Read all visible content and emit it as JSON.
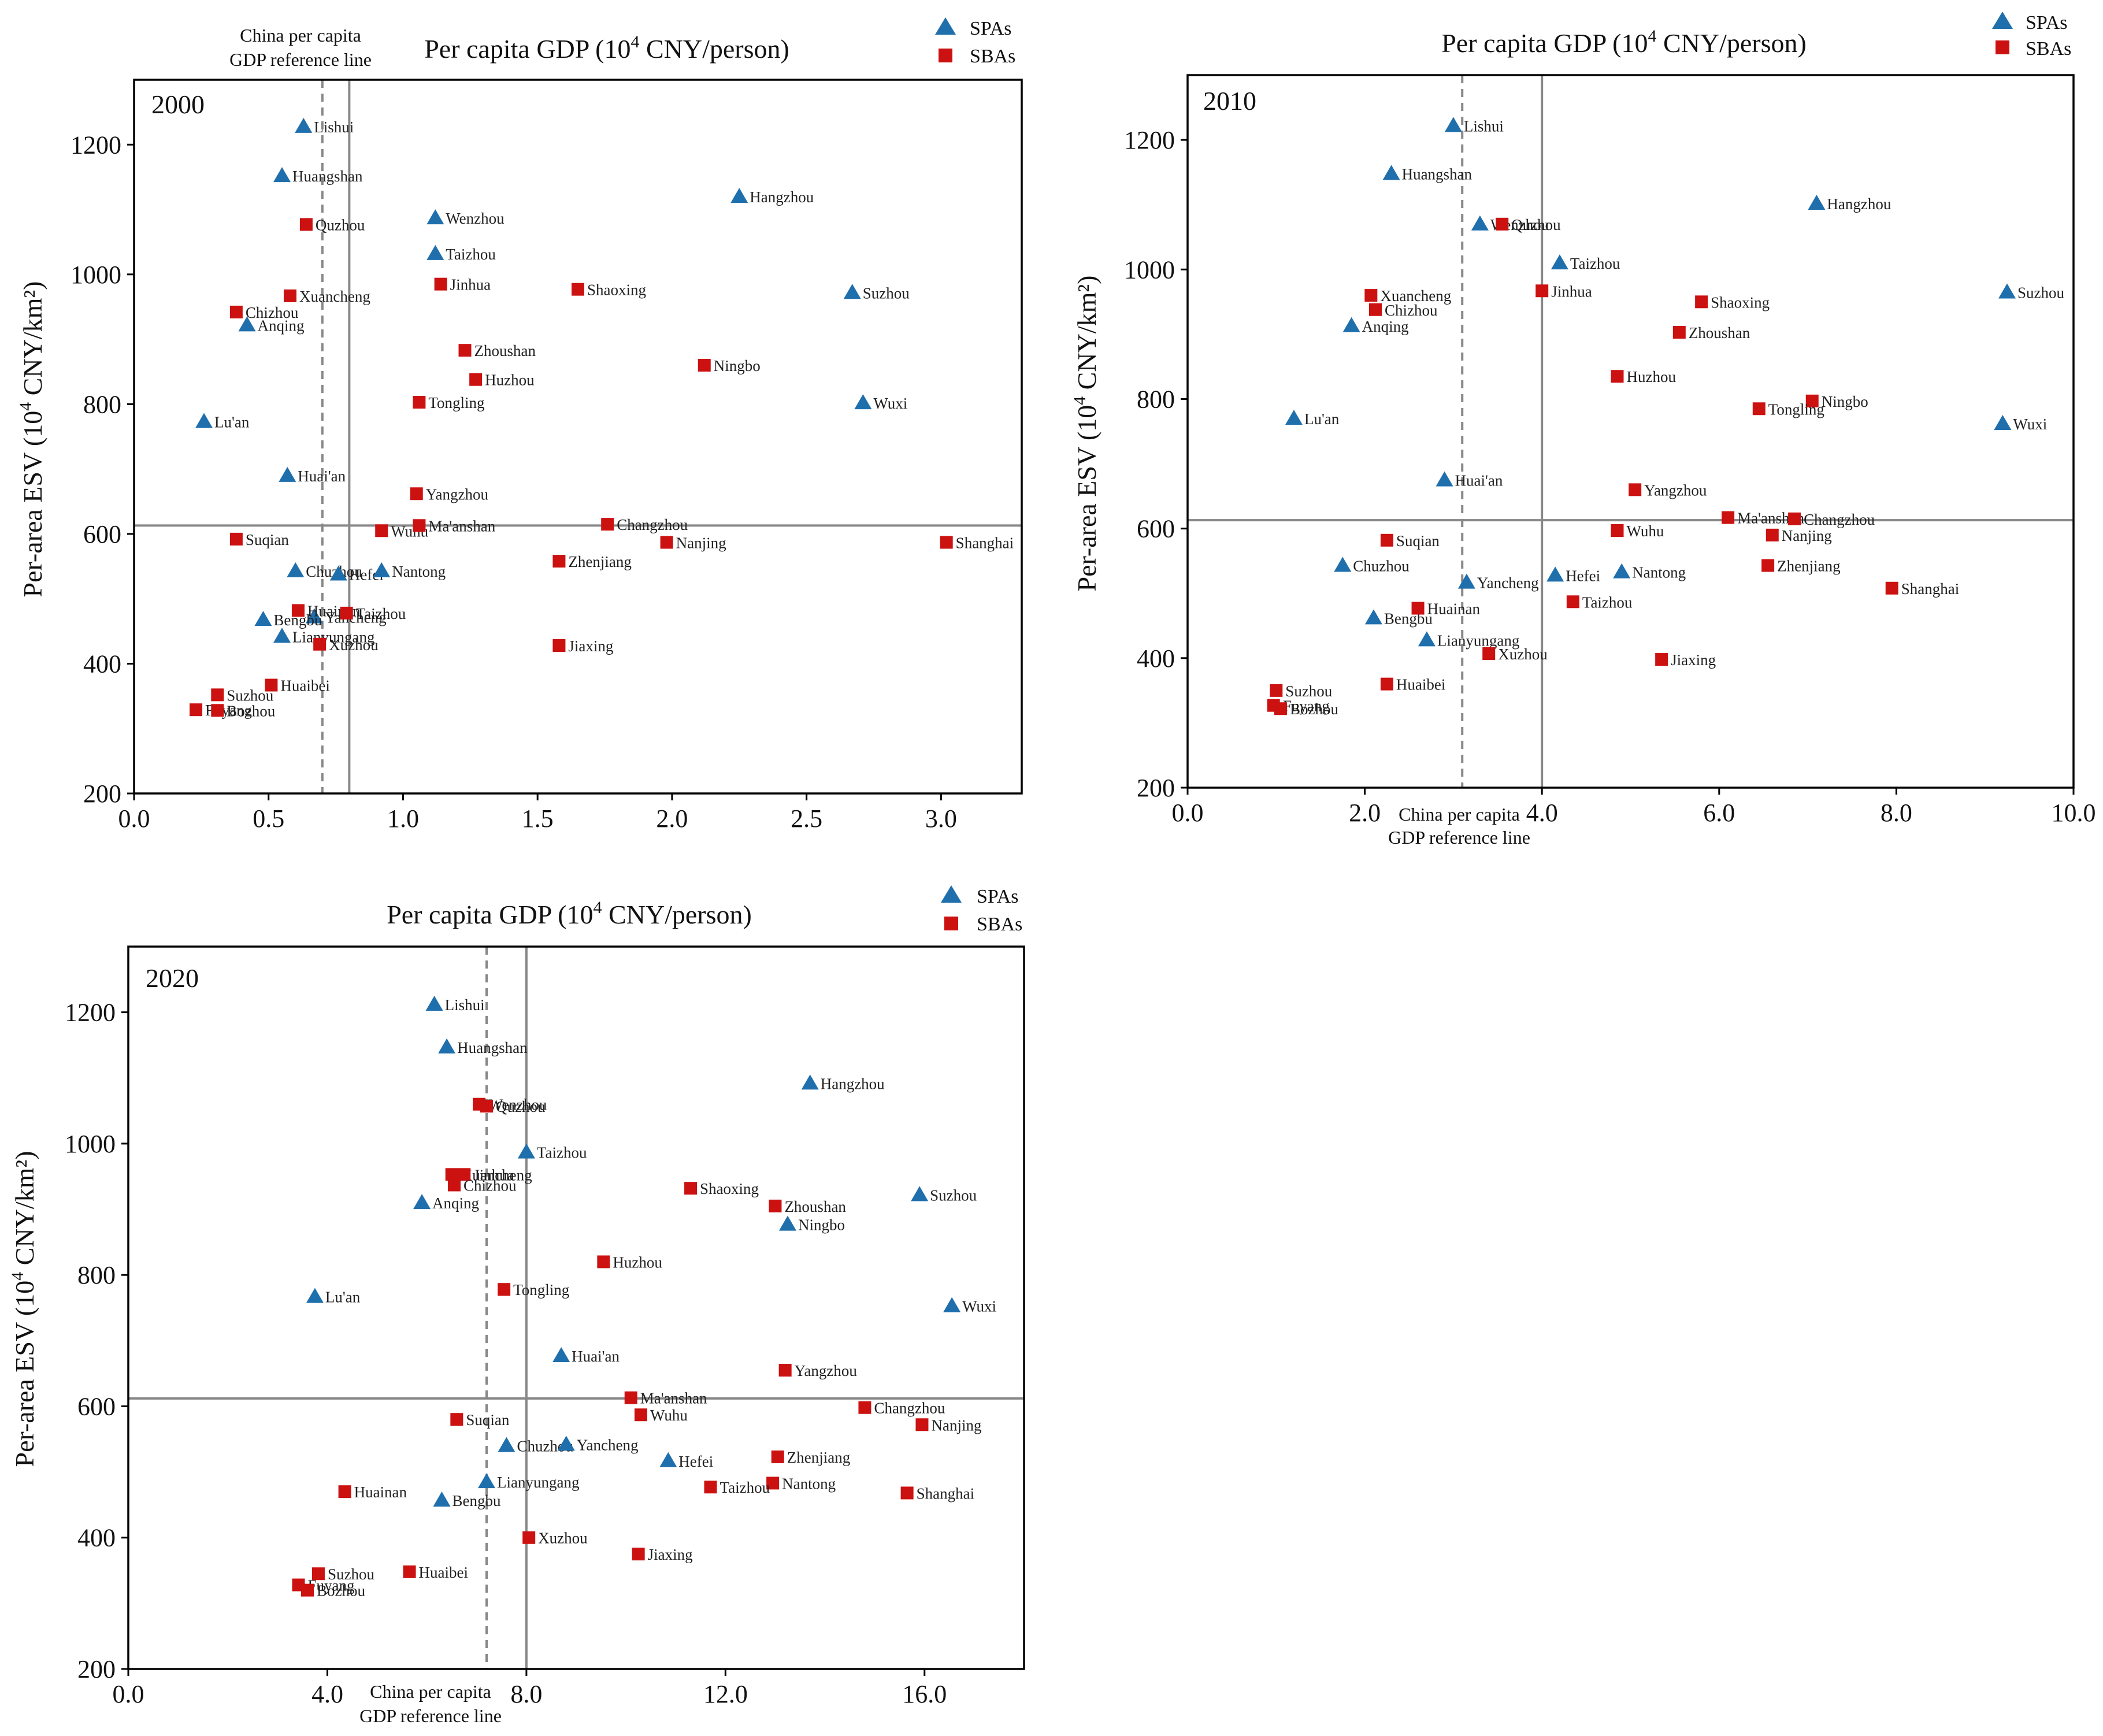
{
  "chart_data": [
    {
      "type": "scatter",
      "panel_label": "2000",
      "title": "Per capita GDP (10",
      "title_sup": "4",
      "title_tail": " CNY/person)",
      "ylabel": "Per-area ESV (10",
      "ylabel_sup": "4",
      "ylabel_tail": " CNY/km²)",
      "xlim": [
        0,
        3.3
      ],
      "ylim": [
        200,
        1300
      ],
      "xticks": [
        0.0,
        0.5,
        1.0,
        1.5,
        2.0,
        2.5,
        3.0
      ],
      "xtick_labels": [
        "0.0",
        "0.5",
        "1.0",
        "1.5",
        "2.0",
        "2.5",
        "3.0"
      ],
      "yticks": [
        200,
        400,
        600,
        800,
        1000,
        1200
      ],
      "ytick_labels": [
        "200",
        "400",
        "600",
        "800",
        "1000",
        "1200"
      ],
      "ref_lines": {
        "china_gdp_x": 0.7,
        "mean_gdp_x": 0.8,
        "mean_esv_y": 613
      },
      "ref_label": [
        "China  per capita",
        "GDP reference line"
      ],
      "legend": [
        "SPAs",
        "SBAs"
      ],
      "spas": [
        {
          "name": "Lishui",
          "x": 0.63,
          "y": 1228
        },
        {
          "name": "Huangshan",
          "x": 0.55,
          "y": 1152
        },
        {
          "name": "Hangzhou",
          "x": 2.25,
          "y": 1120
        },
        {
          "name": "Wenzhou",
          "x": 1.12,
          "y": 1087
        },
        {
          "name": "Taizhou",
          "x": 1.12,
          "y": 1032
        },
        {
          "name": "Suzhou",
          "x": 2.67,
          "y": 972
        },
        {
          "name": "Anqing",
          "x": 0.42,
          "y": 922
        },
        {
          "name": "Wuxi",
          "x": 2.71,
          "y": 802
        },
        {
          "name": "Lu'an",
          "x": 0.26,
          "y": 773
        },
        {
          "name": "Huai'an",
          "x": 0.57,
          "y": 690
        },
        {
          "name": "Chuzhou",
          "x": 0.6,
          "y": 543
        },
        {
          "name": "Hefei",
          "x": 0.76,
          "y": 538
        },
        {
          "name": "Nantong",
          "x": 0.92,
          "y": 543
        },
        {
          "name": "Yancheng",
          "x": 0.67,
          "y": 472
        },
        {
          "name": "Bengbu",
          "x": 0.48,
          "y": 468
        },
        {
          "name": "Lianyungang",
          "x": 0.55,
          "y": 442
        }
      ],
      "sbas": [
        {
          "name": "Quzhou",
          "x": 0.64,
          "y": 1077
        },
        {
          "name": "Jinhua",
          "x": 1.14,
          "y": 985
        },
        {
          "name": "Xuancheng",
          "x": 0.58,
          "y": 967
        },
        {
          "name": "Shaoxing",
          "x": 1.65,
          "y": 977
        },
        {
          "name": "Chizhou",
          "x": 0.38,
          "y": 942
        },
        {
          "name": "Zhoushan",
          "x": 1.23,
          "y": 883
        },
        {
          "name": "Ningbo",
          "x": 2.12,
          "y": 860
        },
        {
          "name": "Huzhou",
          "x": 1.27,
          "y": 838
        },
        {
          "name": "Tongling",
          "x": 1.06,
          "y": 803
        },
        {
          "name": "Yangzhou",
          "x": 1.05,
          "y": 662
        },
        {
          "name": "Wuhu",
          "x": 0.92,
          "y": 605
        },
        {
          "name": "Ma'anshan",
          "x": 1.06,
          "y": 613
        },
        {
          "name": "Changzhou",
          "x": 1.76,
          "y": 615
        },
        {
          "name": "Suqian",
          "x": 0.38,
          "y": 592
        },
        {
          "name": "Nanjing",
          "x": 1.98,
          "y": 587
        },
        {
          "name": "Shanghai",
          "x": 3.02,
          "y": 587
        },
        {
          "name": "Zhenjiang",
          "x": 1.58,
          "y": 558
        },
        {
          "name": "Huainan",
          "x": 0.61,
          "y": 482
        },
        {
          "name": "Taizhou",
          "x": 0.79,
          "y": 478
        },
        {
          "name": "Xuzhou",
          "x": 0.69,
          "y": 430
        },
        {
          "name": "Jiaxing",
          "x": 1.58,
          "y": 428
        },
        {
          "name": "Huaibei",
          "x": 0.51,
          "y": 367
        },
        {
          "name": "Suzhou",
          "x": 0.31,
          "y": 352
        },
        {
          "name": "Fuyang",
          "x": 0.23,
          "y": 329
        },
        {
          "name": "Bozhou",
          "x": 0.31,
          "y": 328
        }
      ]
    },
    {
      "type": "scatter",
      "panel_label": "2010",
      "title": "Per capita GDP (10",
      "title_sup": "4",
      "title_tail": " CNY/person)",
      "ylabel": "Per-area ESV (10",
      "ylabel_sup": "4",
      "ylabel_tail": " CNY/km²)",
      "xlim": [
        0,
        10
      ],
      "ylim": [
        200,
        1300
      ],
      "xticks": [
        0,
        2,
        4,
        6,
        8,
        10
      ],
      "xtick_labels": [
        "0.0",
        "2.0",
        "4.0",
        "6.0",
        "8.0",
        "10.0"
      ],
      "yticks": [
        200,
        400,
        600,
        800,
        1000,
        1200
      ],
      "ytick_labels": [
        "200",
        "400",
        "600",
        "800",
        "1000",
        "1200"
      ],
      "ref_lines": {
        "china_gdp_x": 3.1,
        "mean_gdp_x": 4.0,
        "mean_esv_y": 613
      },
      "ref_label": [
        "China  per capita",
        "GDP reference line"
      ],
      "legend": [
        "SPAs",
        "SBAs"
      ],
      "spas": [
        {
          "name": "Lishui",
          "x": 3.0,
          "y": 1222
        },
        {
          "name": "Huangshan",
          "x": 2.3,
          "y": 1148
        },
        {
          "name": "Hangzhou",
          "x": 7.1,
          "y": 1102
        },
        {
          "name": "Wenzhou",
          "x": 3.3,
          "y": 1070
        },
        {
          "name": "Taizhou",
          "x": 4.2,
          "y": 1010
        },
        {
          "name": "Suzhou",
          "x": 9.25,
          "y": 965
        },
        {
          "name": "Anqing",
          "x": 1.85,
          "y": 913
        },
        {
          "name": "Wuxi",
          "x": 9.2,
          "y": 762
        },
        {
          "name": "Lu'an",
          "x": 1.2,
          "y": 770
        },
        {
          "name": "Huai'an",
          "x": 2.9,
          "y": 675
        },
        {
          "name": "Chuzhou",
          "x": 1.75,
          "y": 543
        },
        {
          "name": "Yancheng",
          "x": 3.15,
          "y": 517
        },
        {
          "name": "Hefei",
          "x": 4.15,
          "y": 528
        },
        {
          "name": "Nantong",
          "x": 4.9,
          "y": 533
        },
        {
          "name": "Bengbu",
          "x": 2.1,
          "y": 462
        },
        {
          "name": "Lianyungang",
          "x": 2.7,
          "y": 428
        }
      ],
      "sbas": [
        {
          "name": "Quzhou",
          "x": 3.55,
          "y": 1070
        },
        {
          "name": "Jinhua",
          "x": 4.0,
          "y": 967
        },
        {
          "name": "Xuancheng",
          "x": 2.07,
          "y": 960
        },
        {
          "name": "Chizhou",
          "x": 2.12,
          "y": 938
        },
        {
          "name": "Shaoxing",
          "x": 5.8,
          "y": 950
        },
        {
          "name": "Zhoushan",
          "x": 5.55,
          "y": 903
        },
        {
          "name": "Huzhou",
          "x": 4.85,
          "y": 835
        },
        {
          "name": "Ningbo",
          "x": 7.05,
          "y": 797
        },
        {
          "name": "Tongling",
          "x": 6.45,
          "y": 785
        },
        {
          "name": "Yangzhou",
          "x": 5.05,
          "y": 660
        },
        {
          "name": "Ma'anshan",
          "x": 6.1,
          "y": 617
        },
        {
          "name": "Changzhou",
          "x": 6.85,
          "y": 615
        },
        {
          "name": "Suqian",
          "x": 2.25,
          "y": 582
        },
        {
          "name": "Wuhu",
          "x": 4.85,
          "y": 597
        },
        {
          "name": "Nanjing",
          "x": 6.6,
          "y": 590
        },
        {
          "name": "Zhenjiang",
          "x": 6.55,
          "y": 543
        },
        {
          "name": "Shanghai",
          "x": 7.95,
          "y": 508
        },
        {
          "name": "Huainan",
          "x": 2.6,
          "y": 477
        },
        {
          "name": "Taizhou",
          "x": 4.35,
          "y": 487
        },
        {
          "name": "Xuzhou",
          "x": 3.4,
          "y": 407
        },
        {
          "name": "Jiaxing",
          "x": 5.35,
          "y": 398
        },
        {
          "name": "Huaibei",
          "x": 2.25,
          "y": 360
        },
        {
          "name": "Suzhou",
          "x": 1.0,
          "y": 350
        },
        {
          "name": "Fuyang",
          "x": 0.97,
          "y": 327
        },
        {
          "name": "Bozhou",
          "x": 1.05,
          "y": 322
        }
      ]
    },
    {
      "type": "scatter",
      "panel_label": "2020",
      "title": "Per capita GDP (10",
      "title_sup": "4",
      "title_tail": " CNY/person)",
      "ylabel": "Per-area ESV (10",
      "ylabel_sup": "4",
      "ylabel_tail": " CNY/km²)",
      "xlim": [
        0,
        18
      ],
      "ylim": [
        200,
        1300
      ],
      "xticks": [
        0,
        4,
        8,
        12,
        16
      ],
      "xtick_labels": [
        "0.0",
        "4.0",
        "8.0",
        "12.0",
        "16.0"
      ],
      "yticks": [
        200,
        400,
        600,
        800,
        1000,
        1200
      ],
      "ytick_labels": [
        "200",
        "400",
        "600",
        "800",
        "1000",
        "1200"
      ],
      "ref_lines": {
        "china_gdp_x": 7.2,
        "mean_gdp_x": 8.0,
        "mean_esv_y": 612
      },
      "ref_label": [
        "China  per capita",
        "GDP reference line"
      ],
      "legend": [
        "SPAs",
        "SBAs"
      ],
      "spas": [
        {
          "name": "Lishui",
          "x": 6.15,
          "y": 1212
        },
        {
          "name": "Huangshan",
          "x": 6.4,
          "y": 1147
        },
        {
          "name": "Hangzhou",
          "x": 13.7,
          "y": 1092
        },
        {
          "name": "Taizhou",
          "x": 8.0,
          "y": 987
        },
        {
          "name": "Suzhou",
          "x": 15.9,
          "y": 922
        },
        {
          "name": "Anqing",
          "x": 5.9,
          "y": 910
        },
        {
          "name": "Ningbo",
          "x": 13.25,
          "y": 877
        },
        {
          "name": "Wuxi",
          "x": 16.55,
          "y": 753
        },
        {
          "name": "Lu'an",
          "x": 3.75,
          "y": 767
        },
        {
          "name": "Huai'an",
          "x": 8.7,
          "y": 677
        },
        {
          "name": "Chuzhou",
          "x": 7.6,
          "y": 540
        },
        {
          "name": "Yancheng",
          "x": 8.8,
          "y": 542
        },
        {
          "name": "Hefei",
          "x": 10.85,
          "y": 517
        },
        {
          "name": "Lianyungang",
          "x": 7.2,
          "y": 485
        },
        {
          "name": "Bengbu",
          "x": 6.3,
          "y": 457
        }
      ],
      "sbas": [
        {
          "name": "Wenzhou",
          "x": 7.05,
          "y": 1060
        },
        {
          "name": "Quzhou",
          "x": 7.2,
          "y": 1057
        },
        {
          "name": "Xuancheng",
          "x": 6.5,
          "y": 953
        },
        {
          "name": "Jinhua",
          "x": 6.75,
          "y": 953
        },
        {
          "name": "Chizhou",
          "x": 6.55,
          "y": 937
        },
        {
          "name": "Shaoxing",
          "x": 11.3,
          "y": 932
        },
        {
          "name": "Zhoushan",
          "x": 13.0,
          "y": 905
        },
        {
          "name": "Huzhou",
          "x": 9.55,
          "y": 820
        },
        {
          "name": "Tongling",
          "x": 7.55,
          "y": 778
        },
        {
          "name": "Yangzhou",
          "x": 13.2,
          "y": 655
        },
        {
          "name": "Ma'anshan",
          "x": 10.1,
          "y": 613
        },
        {
          "name": "Changzhou",
          "x": 14.8,
          "y": 598
        },
        {
          "name": "Wuhu",
          "x": 10.3,
          "y": 587
        },
        {
          "name": "Suqian",
          "x": 6.6,
          "y": 580
        },
        {
          "name": "Nanjing",
          "x": 15.95,
          "y": 572
        },
        {
          "name": "Zhenjiang",
          "x": 13.05,
          "y": 523
        },
        {
          "name": "Nantong",
          "x": 12.95,
          "y": 483
        },
        {
          "name": "Taizhou",
          "x": 11.7,
          "y": 477
        },
        {
          "name": "Huainan",
          "x": 4.35,
          "y": 470
        },
        {
          "name": "Shanghai",
          "x": 15.65,
          "y": 468
        },
        {
          "name": "Xuzhou",
          "x": 8.05,
          "y": 400
        },
        {
          "name": "Jiaxing",
          "x": 10.25,
          "y": 375
        },
        {
          "name": "Huaibei",
          "x": 5.65,
          "y": 348
        },
        {
          "name": "Suzhou",
          "x": 3.82,
          "y": 345
        },
        {
          "name": "Fuyang",
          "x": 3.42,
          "y": 328
        },
        {
          "name": "Bozhou",
          "x": 3.6,
          "y": 320
        }
      ]
    }
  ]
}
